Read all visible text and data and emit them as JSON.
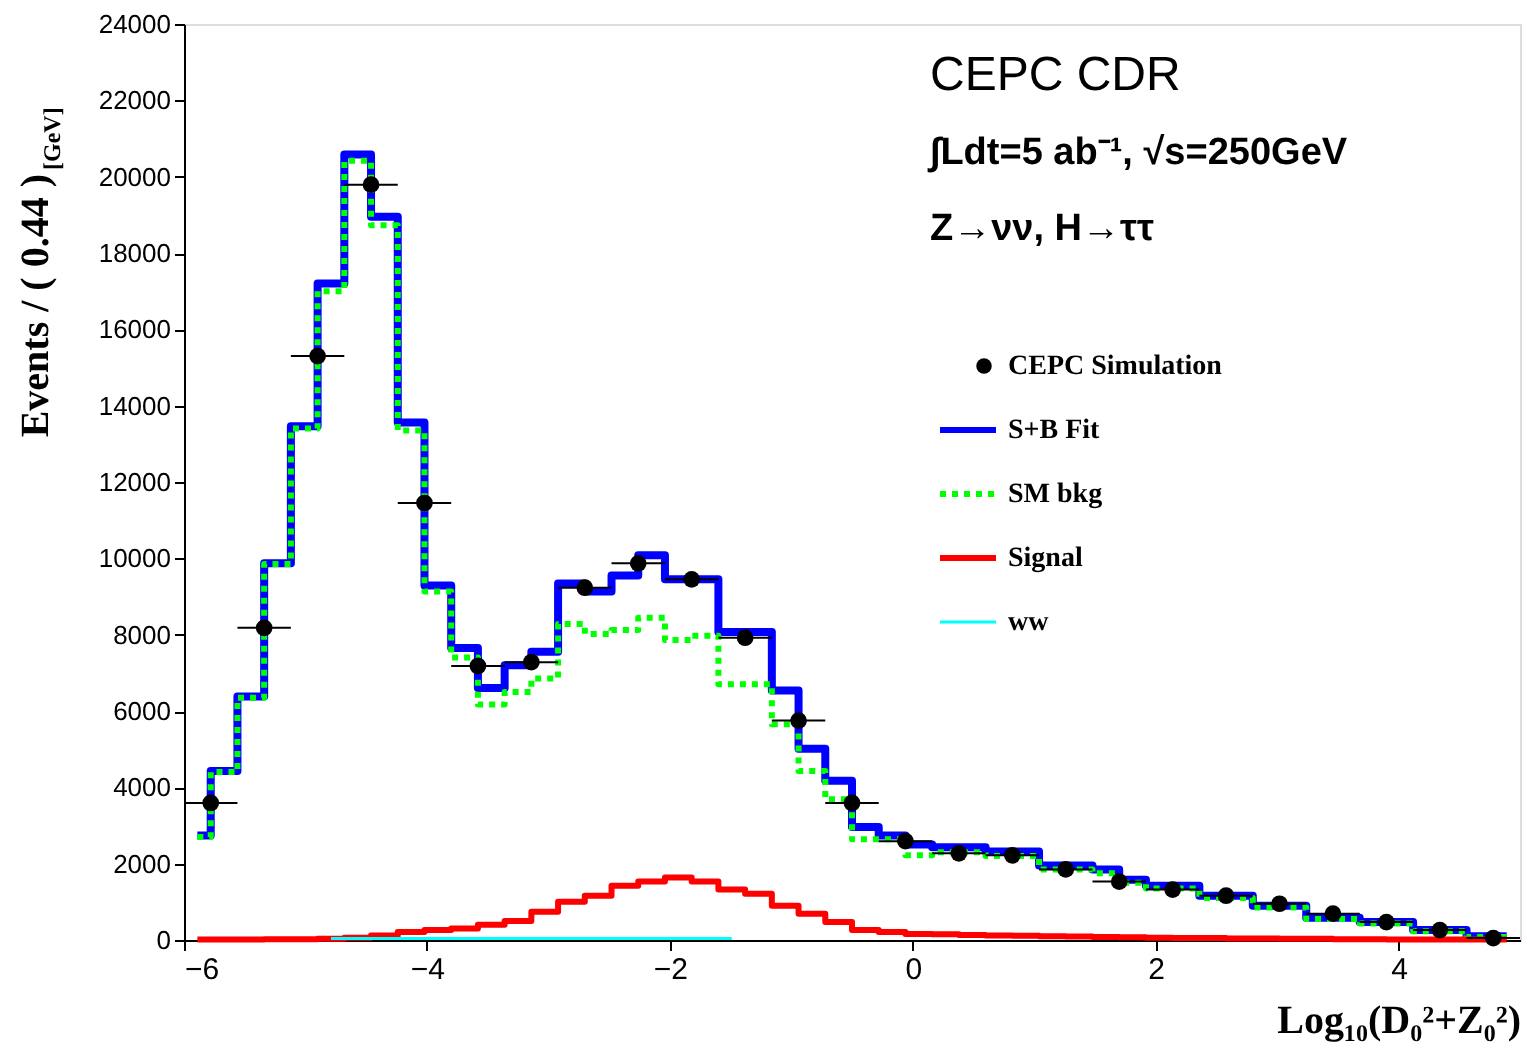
{
  "chart_data": {
    "type": "step",
    "xlabel": "Log₁₀(D₀²+Z₀²)",
    "ylabel": "Events / ( 0.44 )$_{[GeV]}$",
    "annotations": [
      "CEPC CDR",
      "∫Ldt=5 ab⁻¹, √s=250GeV",
      "Z→νν, H→ττ"
    ],
    "xlim": [
      -6,
      5
    ],
    "xticks": [
      -6,
      -4,
      -2,
      0,
      2,
      4
    ],
    "ylim": [
      0,
      24000
    ],
    "yticks": [
      0,
      2000,
      4000,
      6000,
      8000,
      10000,
      12000,
      14000,
      16000,
      18000,
      20000,
      22000,
      24000
    ],
    "legend": "right",
    "grid": false,
    "x": [
      -5.89,
      -5.67,
      -5.45,
      -5.23,
      -5.01,
      -4.79,
      -4.57,
      -4.35,
      -4.13,
      -3.91,
      -3.69,
      -3.47,
      -3.25,
      -3.03,
      -2.81,
      -2.59,
      -2.37,
      -2.15,
      -1.93,
      -1.71,
      -1.49,
      -1.27,
      -1.05,
      -0.83,
      -0.61,
      -0.39,
      -0.17,
      0.05,
      0.27,
      0.49,
      0.71,
      0.93,
      1.15,
      1.37,
      1.59,
      1.81,
      2.03,
      2.25,
      2.47,
      2.69,
      2.91,
      3.13,
      3.35,
      3.57,
      3.79,
      4.01,
      4.23,
      4.45,
      4.67,
      4.89
    ],
    "series": [
      {
        "name": "S+B Fit",
        "color": "#0000ff",
        "line_style": "solid",
        "values": [
          2740,
          4430,
          6380,
          9870,
          13460,
          17200,
          20580,
          18950,
          13560,
          9290,
          7650,
          6600,
          7200,
          7550,
          9340,
          9130,
          9550,
          10080,
          9450,
          9450,
          8070,
          8070,
          6540,
          5010,
          4170,
          2960,
          2740,
          2500,
          2430,
          2430,
          2320,
          2320,
          1950,
          1950,
          1850,
          1580,
          1420,
          1420,
          1160,
          1160,
          900,
          900,
          580,
          580,
          470,
          470,
          260,
          260,
          100,
          100
        ]
      },
      {
        "name": "SM bkg",
        "color": "#00ff00",
        "line_style": "dotted",
        "values": [
          2700,
          4400,
          6350,
          9850,
          13400,
          17000,
          20420,
          18730,
          13350,
          9130,
          7400,
          6170,
          6500,
          6850,
          8280,
          8020,
          8120,
          8440,
          7860,
          7970,
          6700,
          6700,
          5650,
          4430,
          3690,
          2640,
          2640,
          2220,
          2300,
          2300,
          2200,
          2200,
          1850,
          1850,
          1750,
          1500,
          1350,
          1350,
          1100,
          1100,
          850,
          850,
          550,
          550,
          430,
          430,
          230,
          230,
          80,
          80
        ]
      },
      {
        "name": "Signal",
        "color": "#ff0000",
        "line_style": "solid",
        "values": [
          10,
          10,
          10,
          20,
          20,
          30,
          60,
          120,
          210,
          260,
          300,
          400,
          500,
          740,
          1000,
          1160,
          1420,
          1530,
          1640,
          1530,
          1320,
          1210,
          900,
          690,
          470,
          260,
          210,
          160,
          150,
          130,
          120,
          110,
          100,
          90,
          80,
          70,
          60,
          50,
          50,
          40,
          40,
          30,
          30,
          20,
          20,
          10,
          10,
          10,
          10,
          10
        ]
      },
      {
        "name": "ww",
        "color": "#00ffff",
        "line_style": "solid",
        "values": [
          null,
          null,
          null,
          null,
          null,
          40,
          40,
          40,
          40,
          40,
          40,
          40,
          40,
          40,
          40,
          40,
          40,
          40,
          40,
          40,
          40,
          null,
          null,
          null,
          null,
          null,
          null,
          null,
          null,
          null,
          null,
          null,
          null,
          null,
          null,
          null,
          null,
          null,
          null,
          null,
          null,
          null,
          null,
          null,
          null,
          null,
          null,
          null,
          null,
          null
        ]
      },
      {
        "name": "CEPC Simulation",
        "type": "scatter",
        "color": "#000000",
        "marker": "circle",
        "x": [
          -5.78,
          -5.34,
          -4.9,
          -4.46,
          -4.02,
          -3.58,
          -3.14,
          -2.7,
          -2.26,
          -1.82,
          -1.38,
          -0.94,
          -0.5,
          -0.06,
          0.38,
          0.82,
          1.26,
          1.7,
          2.14,
          2.58,
          3.02,
          3.46,
          3.9,
          4.34,
          4.78
        ],
        "values": [
          3590,
          8180,
          15300,
          19790,
          11450,
          7180,
          7280,
          9230,
          9870,
          9450,
          7920,
          5750,
          3590,
          2590,
          2270,
          2220,
          1850,
          1530,
          1320,
          1160,
          950,
          690,
          470,
          260,
          50
        ],
        "xerrors": [
          0.22,
          0.22,
          0.22,
          0.22,
          0.22,
          0.22,
          0.22,
          0.22,
          0.22,
          0.22,
          0.22,
          0.22,
          0.22,
          0.22,
          0.22,
          0.22,
          0.22,
          0.22,
          0.22,
          0.22,
          0.22,
          0.22,
          0.22,
          0.22,
          0.22
        ]
      }
    ]
  }
}
